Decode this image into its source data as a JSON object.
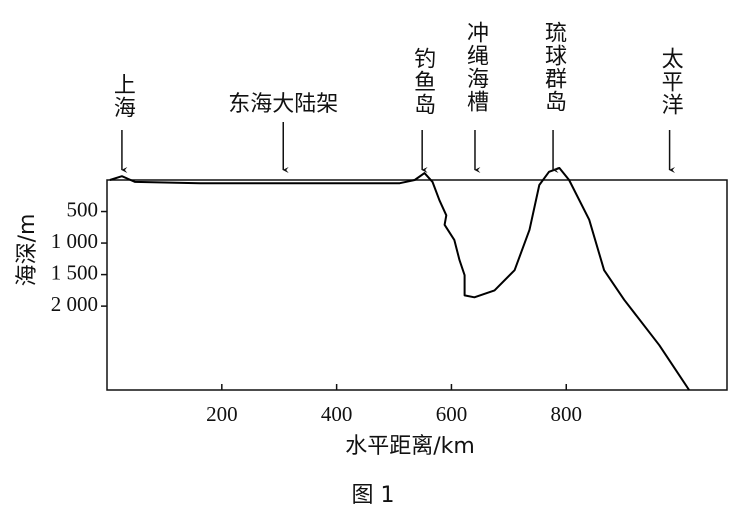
{
  "chart_data": {
    "type": "line",
    "xlabel": "水平距离/km",
    "ylabel": "海深/m",
    "caption": "图 1",
    "x": [
      5,
      26,
      49,
      162,
      336,
      510,
      536,
      553,
      567,
      579,
      591,
      588,
      605,
      614,
      623,
      623,
      640,
      675,
      710,
      736,
      753,
      770,
      788,
      805,
      840,
      866,
      901,
      962,
      1014
    ],
    "values": [
      0,
      -60,
      30,
      50,
      50,
      50,
      0,
      -110,
      30,
      320,
      560,
      710,
      950,
      1270,
      1510,
      1830,
      1860,
      1750,
      1430,
      790,
      80,
      -130,
      -190,
      0,
      630,
      1430,
      1900,
      2620,
      3330
    ],
    "color": "#000000",
    "xlim": [
      0,
      1080
    ],
    "xticks": [
      200,
      400,
      600,
      800
    ],
    "ylim": [
      3330,
      0
    ],
    "y_inverted": true,
    "yticks": [
      500,
      {
        "value": 1000,
        "label": "1 000"
      },
      {
        "value": 1500,
        "label": "1 500"
      },
      {
        "value": 2000,
        "label": "2 000"
      }
    ],
    "annotations": [
      {
        "text": "上海",
        "x": 26
      },
      {
        "text": "东海大陆架",
        "x": 307
      },
      {
        "text": "钓鱼岛",
        "x": 549
      },
      {
        "text": "冲绳海槽",
        "x": 641
      },
      {
        "text": "琉球群岛",
        "x": 777
      },
      {
        "text": "太平洋",
        "x": 980
      }
    ]
  }
}
